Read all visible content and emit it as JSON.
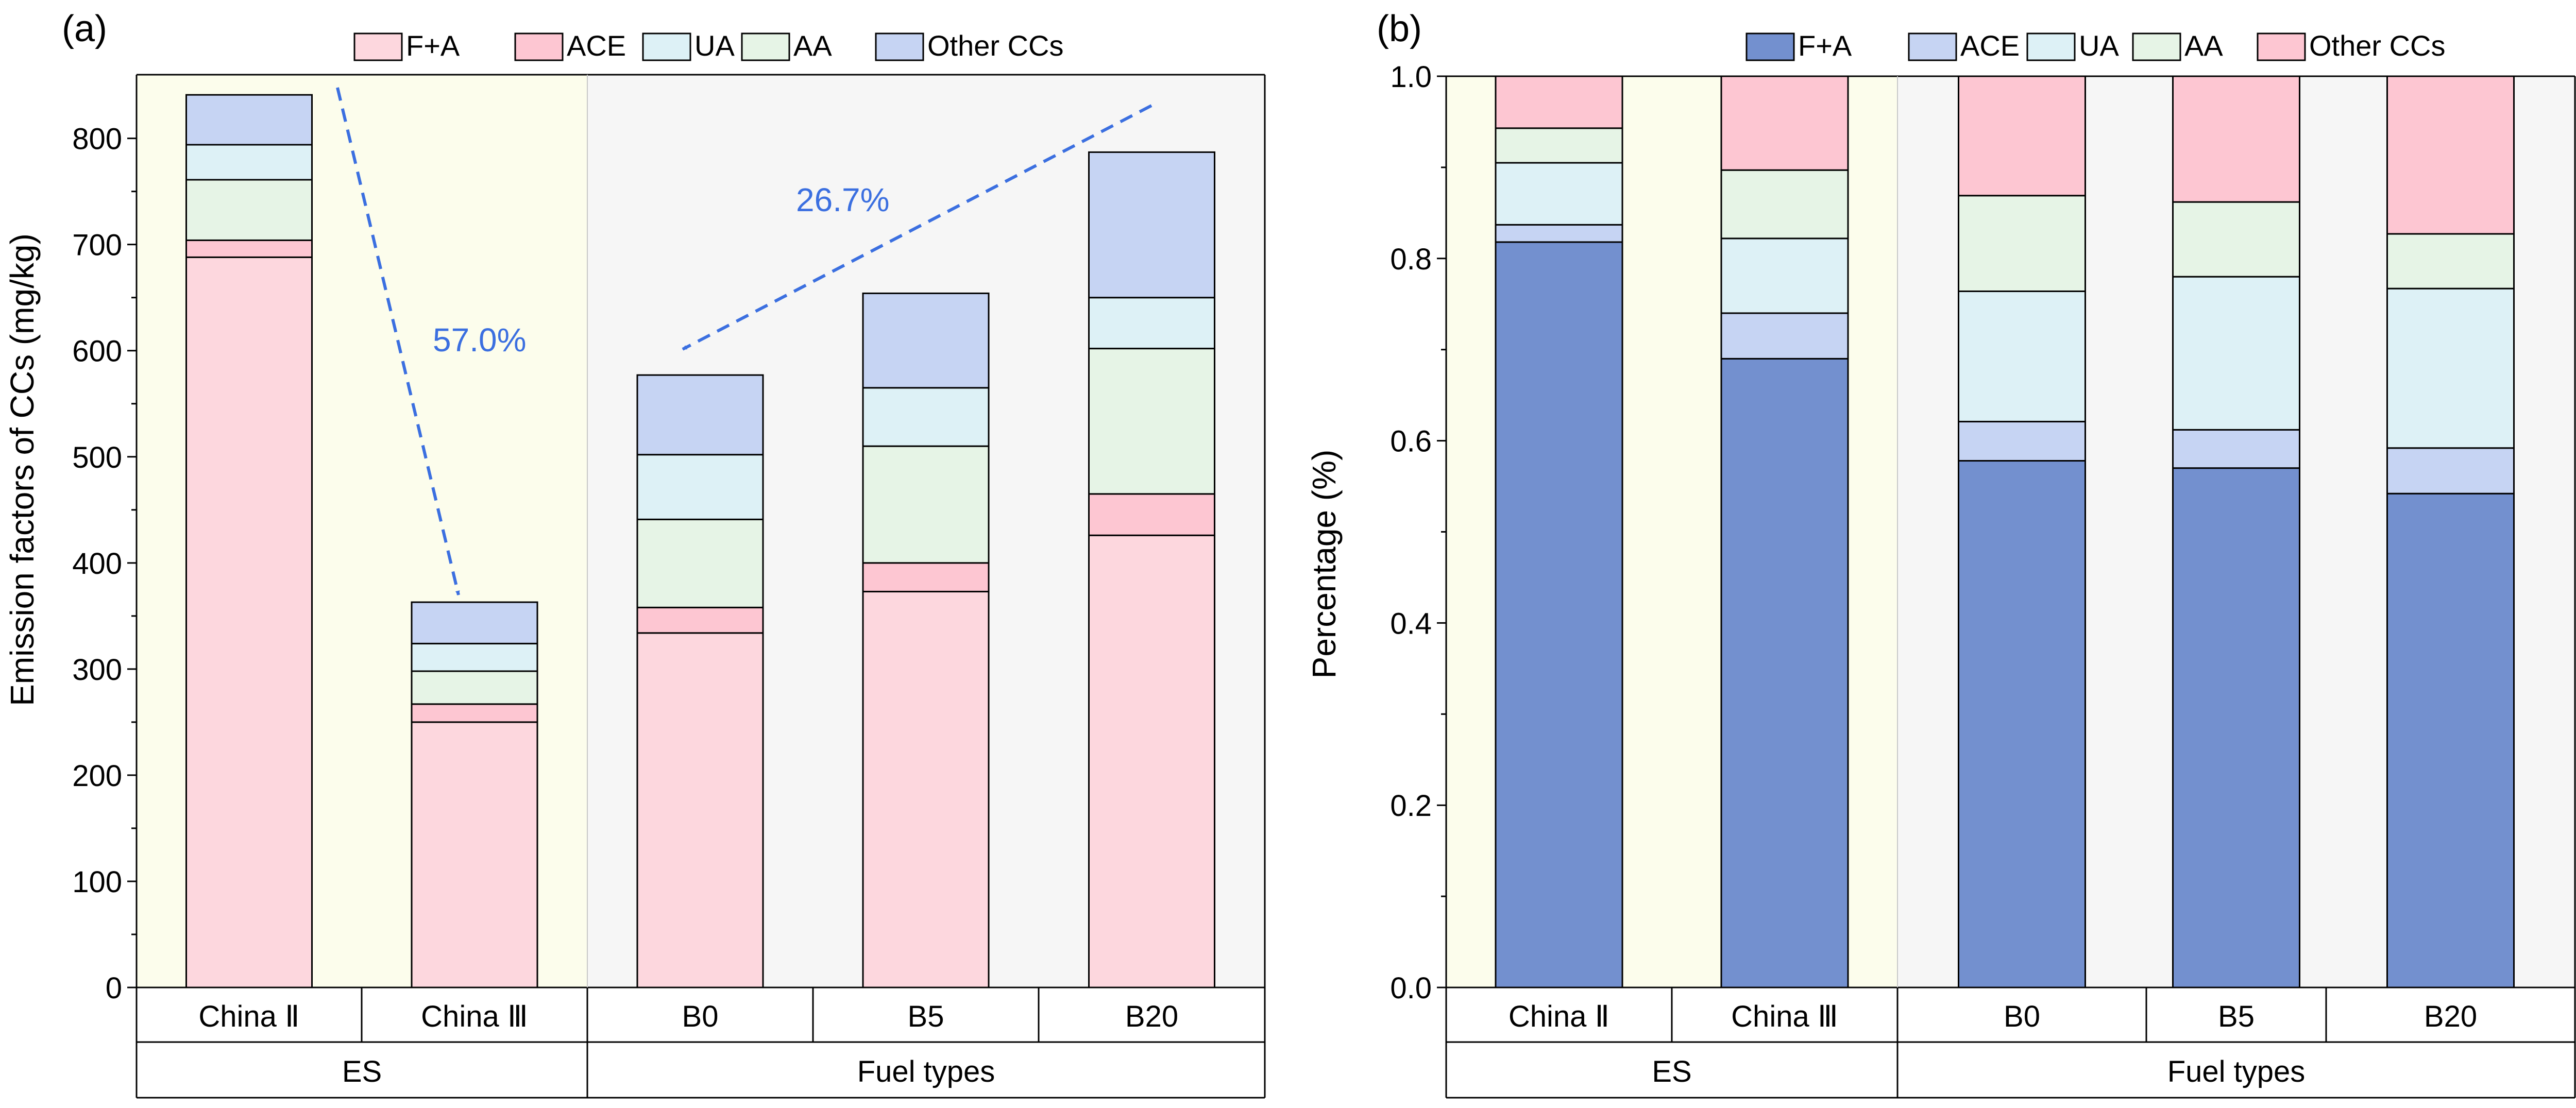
{
  "chart_data": [
    {
      "panel_label": "(a)",
      "type": "bar",
      "stacked": true,
      "ylabel": "Emission factors of CCs (mg/kg)",
      "ylim": [
        0,
        860
      ],
      "yticks": [
        0,
        100,
        200,
        300,
        400,
        500,
        600,
        700,
        800
      ],
      "ytick_labels": [
        "0",
        "100",
        "200",
        "300",
        "400",
        "500",
        "600",
        "700",
        "800"
      ],
      "categories": [
        "China Ⅱ",
        "China Ⅲ",
        "B0",
        "B5",
        "B20"
      ],
      "groups": [
        {
          "label": "ES",
          "categories": [
            0,
            1
          ],
          "background": "#fcfdec"
        },
        {
          "label": "Fuel types",
          "categories": [
            2,
            3,
            4
          ],
          "background": "#f6f6f6"
        }
      ],
      "legend": [
        "F+A",
        "ACE",
        "UA",
        "AA",
        "Other CCs"
      ],
      "series": [
        {
          "name": "F+A",
          "color": "#fdd7de",
          "values": [
            688,
            250,
            334,
            373,
            426
          ]
        },
        {
          "name": "ACE",
          "color": "#fdc6d2",
          "values": [
            16,
            17,
            24,
            27,
            39
          ]
        },
        {
          "name": "AA",
          "color": "#e6f4e6",
          "values": [
            57,
            31,
            83,
            110,
            137
          ]
        },
        {
          "name": "UA",
          "color": "#ddf1f6",
          "values": [
            33,
            26,
            61,
            55,
            48
          ]
        },
        {
          "name": "Other CCs",
          "color": "#c6d4f3",
          "values": [
            47,
            39,
            75,
            89,
            137
          ]
        }
      ],
      "annotations": [
        {
          "text": "57.0%",
          "from": "China Ⅱ",
          "to": "China Ⅲ"
        },
        {
          "text": "26.7%",
          "from": "B20",
          "to": "B0"
        }
      ]
    },
    {
      "panel_label": "(b)",
      "type": "bar",
      "stacked": true,
      "ylabel": "Percentage (%)",
      "ylim": [
        0,
        1
      ],
      "yticks": [
        0,
        0.2,
        0.4,
        0.6,
        0.8,
        1.0
      ],
      "ytick_labels": [
        "0.0",
        "0.2",
        "0.4",
        "0.6",
        "0.8",
        "1.0"
      ],
      "categories": [
        "China Ⅱ",
        "China Ⅲ",
        "B0",
        "B5",
        "B20"
      ],
      "groups": [
        {
          "label": "ES",
          "categories": [
            0,
            1
          ],
          "background": "#fcfdec"
        },
        {
          "label": "Fuel types",
          "categories": [
            2,
            3,
            4
          ],
          "background": "#f6f6f6"
        }
      ],
      "legend": [
        "F+A",
        "ACE",
        "UA",
        "AA",
        "Other CCs"
      ],
      "series": [
        {
          "name": "F+A",
          "color": "#7390cf",
          "values": [
            0.818,
            0.69,
            0.578,
            0.57,
            0.542
          ]
        },
        {
          "name": "ACE",
          "color": "#c6d4f3",
          "values": [
            0.019,
            0.05,
            0.043,
            0.042,
            0.05
          ]
        },
        {
          "name": "UA",
          "color": "#ddf1f6",
          "values": [
            0.068,
            0.082,
            0.143,
            0.168,
            0.175
          ]
        },
        {
          "name": "AA",
          "color": "#e6f4e6",
          "values": [
            0.038,
            0.075,
            0.105,
            0.082,
            0.06
          ]
        },
        {
          "name": "Other CCs",
          "color": "#fdc6d2",
          "values": [
            0.057,
            0.103,
            0.131,
            0.138,
            0.173
          ]
        }
      ]
    }
  ]
}
